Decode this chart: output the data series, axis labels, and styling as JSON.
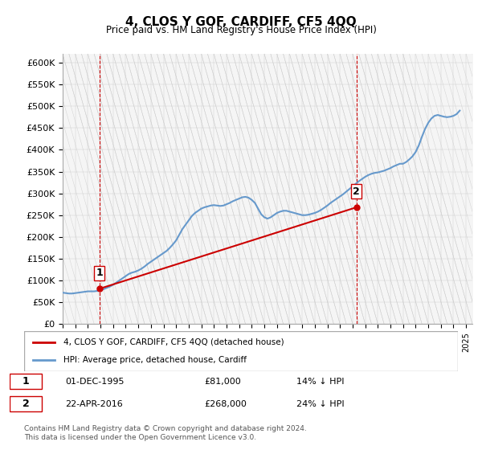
{
  "title": "4, CLOS Y GOF, CARDIFF, CF5 4QQ",
  "subtitle": "Price paid vs. HM Land Registry's House Price Index (HPI)",
  "ylim": [
    0,
    620000
  ],
  "yticks": [
    0,
    50000,
    100000,
    150000,
    200000,
    250000,
    300000,
    350000,
    400000,
    450000,
    500000,
    550000,
    600000
  ],
  "xlim_start": 1993.0,
  "xlim_end": 2025.5,
  "hpi_color": "#6699cc",
  "price_color": "#cc0000",
  "vline_color": "#cc0000",
  "background_color": "#f5f5f5",
  "grid_color": "#ffffff",
  "legend_label_price": "4, CLOS Y GOF, CARDIFF, CF5 4QQ (detached house)",
  "legend_label_hpi": "HPI: Average price, detached house, Cardiff",
  "sale1_date": 1995.92,
  "sale1_price": 81000,
  "sale1_label": "1",
  "sale2_date": 2016.31,
  "sale2_price": 268000,
  "sale2_label": "2",
  "annotation1": "1    01-DEC-1995       £81,000       14% ↓ HPI",
  "annotation2": "2    22-APR-2016       £268,000       24% ↓ HPI",
  "footer": "Contains HM Land Registry data © Crown copyright and database right 2024.\nThis data is licensed under the Open Government Licence v3.0.",
  "hpi_data_x": [
    1993.0,
    1993.25,
    1993.5,
    1993.75,
    1994.0,
    1994.25,
    1994.5,
    1994.75,
    1995.0,
    1995.25,
    1995.5,
    1995.75,
    1996.0,
    1996.25,
    1996.5,
    1996.75,
    1997.0,
    1997.25,
    1997.5,
    1997.75,
    1998.0,
    1998.25,
    1998.5,
    1998.75,
    1999.0,
    1999.25,
    1999.5,
    1999.75,
    2000.0,
    2000.25,
    2000.5,
    2000.75,
    2001.0,
    2001.25,
    2001.5,
    2001.75,
    2002.0,
    2002.25,
    2002.5,
    2002.75,
    2003.0,
    2003.25,
    2003.5,
    2003.75,
    2004.0,
    2004.25,
    2004.5,
    2004.75,
    2005.0,
    2005.25,
    2005.5,
    2005.75,
    2006.0,
    2006.25,
    2006.5,
    2006.75,
    2007.0,
    2007.25,
    2007.5,
    2007.75,
    2008.0,
    2008.25,
    2008.5,
    2008.75,
    2009.0,
    2009.25,
    2009.5,
    2009.75,
    2010.0,
    2010.25,
    2010.5,
    2010.75,
    2011.0,
    2011.25,
    2011.5,
    2011.75,
    2012.0,
    2012.25,
    2012.5,
    2012.75,
    2013.0,
    2013.25,
    2013.5,
    2013.75,
    2014.0,
    2014.25,
    2014.5,
    2014.75,
    2015.0,
    2015.25,
    2015.5,
    2015.75,
    2016.0,
    2016.25,
    2016.5,
    2016.75,
    2017.0,
    2017.25,
    2017.5,
    2017.75,
    2018.0,
    2018.25,
    2018.5,
    2018.75,
    2019.0,
    2019.25,
    2019.5,
    2019.75,
    2020.0,
    2020.25,
    2020.5,
    2020.75,
    2021.0,
    2021.25,
    2021.5,
    2021.75,
    2022.0,
    2022.25,
    2022.5,
    2022.75,
    2023.0,
    2023.25,
    2023.5,
    2023.75,
    2024.0,
    2024.25,
    2024.5
  ],
  "hpi_data_y": [
    72000,
    71000,
    70000,
    70000,
    71000,
    72000,
    73000,
    74000,
    75000,
    75000,
    75000,
    76000,
    78000,
    80000,
    83000,
    86000,
    90000,
    95000,
    100000,
    105000,
    110000,
    115000,
    118000,
    120000,
    123000,
    127000,
    132000,
    138000,
    143000,
    148000,
    153000,
    158000,
    163000,
    168000,
    175000,
    183000,
    192000,
    205000,
    218000,
    228000,
    238000,
    248000,
    255000,
    260000,
    265000,
    268000,
    270000,
    272000,
    273000,
    272000,
    271000,
    272000,
    275000,
    278000,
    282000,
    285000,
    288000,
    291000,
    292000,
    290000,
    285000,
    278000,
    265000,
    252000,
    245000,
    242000,
    245000,
    250000,
    255000,
    258000,
    260000,
    260000,
    258000,
    256000,
    254000,
    252000,
    250000,
    250000,
    251000,
    253000,
    255000,
    258000,
    262000,
    267000,
    272000,
    278000,
    283000,
    288000,
    293000,
    298000,
    304000,
    310000,
    316000,
    322000,
    328000,
    333000,
    338000,
    342000,
    345000,
    347000,
    348000,
    350000,
    352000,
    355000,
    358000,
    362000,
    365000,
    368000,
    368000,
    372000,
    378000,
    385000,
    395000,
    410000,
    430000,
    448000,
    462000,
    472000,
    478000,
    480000,
    478000,
    476000,
    475000,
    476000,
    478000,
    482000,
    490000
  ],
  "price_data_x": [
    1995.92,
    2016.31
  ],
  "price_data_y": [
    81000,
    268000
  ]
}
